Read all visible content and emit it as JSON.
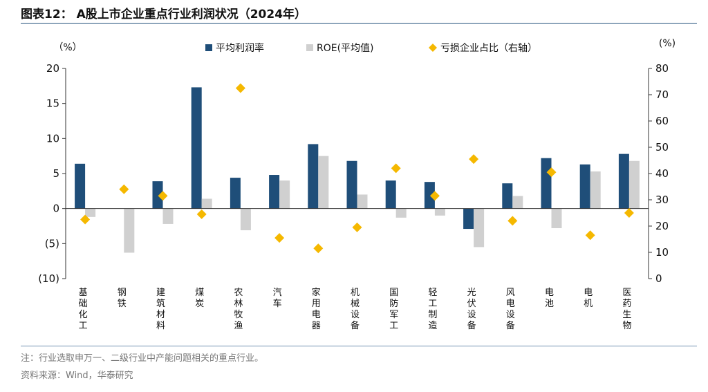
{
  "title": "图表12：  A股上市企业重点行业利润状况（2024年）",
  "note": "注：行业选取申万一、二级行业中产能问题相关的重点行业。",
  "source": "资料来源：Wind，华泰研究",
  "colors": {
    "bar1": "#1f4e79",
    "bar2": "#d0d0d0",
    "marker": "#f5b800",
    "axis": "#333333"
  },
  "chart_data": {
    "type": "bar",
    "title": "",
    "left_unit": "（%）",
    "right_unit": "(%)",
    "left_ticks": [
      "20",
      "15",
      "10",
      "5",
      "0",
      "(5)",
      "(10)"
    ],
    "right_ticks": [
      "80",
      "70",
      "60",
      "50",
      "40",
      "30",
      "20",
      "10",
      "0"
    ],
    "ylim": [
      -10,
      20
    ],
    "y2lim": [
      0,
      80
    ],
    "legend_position": "top",
    "categories": [
      "基础化工",
      "钢铁",
      "建筑材料",
      "煤炭",
      "农林牧渔",
      "汽车",
      "家用电器",
      "机械设备",
      "国防军工",
      "轻工制造",
      "光伏设备",
      "风电设备",
      "电池",
      "电机",
      "医药生物"
    ],
    "series": [
      {
        "name": "平均利润率",
        "type": "bar",
        "axis": "left",
        "values": [
          6.4,
          0,
          3.9,
          17.3,
          4.4,
          4.8,
          9.2,
          6.8,
          4.0,
          3.8,
          -2.9,
          3.6,
          7.2,
          6.3,
          7.8
        ]
      },
      {
        "name": "ROE(平均值)",
        "type": "bar",
        "axis": "left",
        "values": [
          -1.2,
          -6.3,
          -2.2,
          1.4,
          -3.1,
          4.0,
          7.5,
          2.0,
          -1.3,
          -1.0,
          -5.5,
          1.8,
          -2.8,
          5.3,
          6.8
        ]
      },
      {
        "name": "亏损企业占比（右轴）",
        "type": "scatter",
        "axis": "right",
        "values": [
          22.5,
          34,
          31.5,
          24.5,
          72.5,
          15.5,
          11.5,
          19.5,
          42,
          31.5,
          45.5,
          22,
          40.5,
          16.5,
          25
        ]
      }
    ]
  }
}
